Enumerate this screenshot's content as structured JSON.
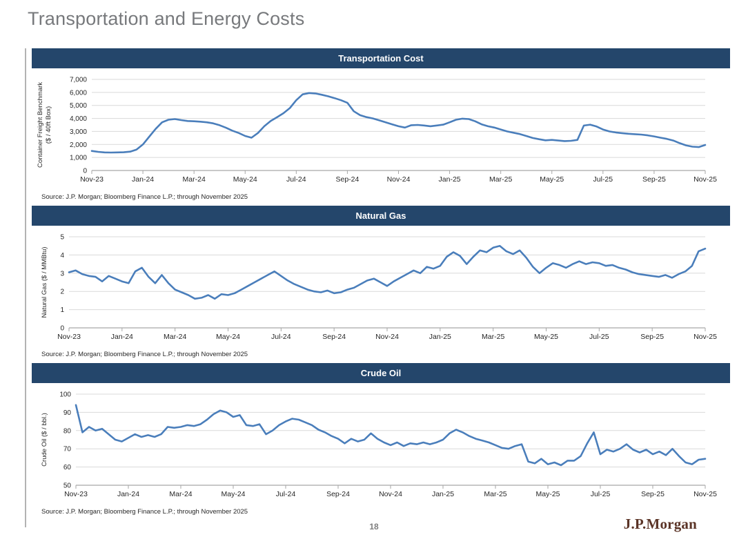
{
  "page": {
    "title": "Transportation and Energy Costs",
    "page_number": "18",
    "logo": "J.P.Morgan"
  },
  "source_note": "Source: J.P. Morgan; Bloomberg Finance L.P.; through November 2025",
  "colors": {
    "header_bg": "#24466B",
    "line": "#4A7EBB",
    "grid": "#D9D9D9",
    "axis": "#A6A6A6",
    "title_gray": "#77797C",
    "logo_brown": "#5B3427",
    "page_number_gray": "#7F7F7F"
  },
  "chart_data": [
    {
      "type": "line",
      "title": "Transportation Cost",
      "ylabel_lines": [
        "Container Freight Benchmark",
        "($ / 40ft Box)"
      ],
      "ymin": 0,
      "ymax": 7000,
      "ystep": 1000,
      "y_tick_labels": [
        "0",
        "1,000",
        "2,000",
        "3,000",
        "4,000",
        "5,000",
        "6,000",
        "7,000"
      ],
      "x_ticks": [
        "Nov-23",
        "Jan-24",
        "Mar-24",
        "May-24",
        "Jul-24",
        "Sep-24",
        "Nov-24",
        "Jan-25",
        "Mar-25",
        "May-25",
        "Jul-25",
        "Sep-25",
        "Nov-25"
      ],
      "x_note": "values evenly spaced (approx. weekly) Nov-2023 through Nov-2025",
      "values": [
        1500,
        1430,
        1390,
        1380,
        1390,
        1400,
        1450,
        1600,
        2000,
        2600,
        3200,
        3700,
        3900,
        3950,
        3870,
        3800,
        3780,
        3750,
        3700,
        3620,
        3480,
        3280,
        3060,
        2880,
        2650,
        2520,
        2880,
        3400,
        3800,
        4100,
        4400,
        4800,
        5400,
        5850,
        5950,
        5920,
        5820,
        5700,
        5560,
        5400,
        5200,
        4550,
        4250,
        4100,
        4000,
        3850,
        3700,
        3550,
        3400,
        3300,
        3480,
        3500,
        3460,
        3400,
        3460,
        3520,
        3700,
        3900,
        3980,
        3950,
        3780,
        3550,
        3400,
        3300,
        3150,
        3000,
        2900,
        2800,
        2650,
        2500,
        2400,
        2320,
        2350,
        2300,
        2260,
        2280,
        2350,
        3450,
        3520,
        3380,
        3150,
        3000,
        2920,
        2870,
        2820,
        2790,
        2760,
        2700,
        2620,
        2520,
        2430,
        2300,
        2100,
        1930,
        1830,
        1800,
        1960
      ]
    },
    {
      "type": "line",
      "title": "Natural Gas",
      "ylabel_lines": [
        "Natural Gas ($ / MMBtu)"
      ],
      "ymin": 0,
      "ymax": 5,
      "ystep": 1,
      "y_tick_labels": [
        "0",
        "1",
        "2",
        "3",
        "4",
        "5"
      ],
      "x_ticks": [
        "Nov-23",
        "Jan-24",
        "Mar-24",
        "May-24",
        "Jul-24",
        "Sep-24",
        "Nov-24",
        "Jan-25",
        "Mar-25",
        "May-25",
        "Jul-25",
        "Sep-25",
        "Nov-25"
      ],
      "x_note": "values evenly spaced (approx. weekly) Nov-2023 through Nov-2025",
      "values": [
        3.05,
        3.15,
        2.95,
        2.85,
        2.8,
        2.55,
        2.85,
        2.7,
        2.55,
        2.45,
        3.1,
        3.3,
        2.8,
        2.45,
        2.9,
        2.45,
        2.1,
        1.95,
        1.8,
        1.6,
        1.65,
        1.8,
        1.6,
        1.85,
        1.8,
        1.9,
        2.1,
        2.3,
        2.5,
        2.7,
        2.9,
        3.1,
        2.85,
        2.6,
        2.4,
        2.25,
        2.1,
        2.0,
        1.95,
        2.05,
        1.9,
        1.95,
        2.1,
        2.2,
        2.4,
        2.6,
        2.7,
        2.5,
        2.3,
        2.55,
        2.75,
        2.95,
        3.15,
        3.0,
        3.35,
        3.25,
        3.4,
        3.9,
        4.15,
        3.95,
        3.5,
        3.9,
        4.25,
        4.15,
        4.4,
        4.5,
        4.2,
        4.05,
        4.25,
        3.85,
        3.35,
        3.0,
        3.3,
        3.55,
        3.45,
        3.3,
        3.5,
        3.65,
        3.5,
        3.6,
        3.55,
        3.4,
        3.45,
        3.3,
        3.2,
        3.05,
        2.95,
        2.9,
        2.85,
        2.8,
        2.9,
        2.75,
        2.95,
        3.1,
        3.4,
        4.2,
        4.35
      ]
    },
    {
      "type": "line",
      "title": "Crude Oil",
      "ylabel_lines": [
        "Crude Oil ($ / bbl.)"
      ],
      "ymin": 50,
      "ymax": 100,
      "ystep": 10,
      "y_tick_labels": [
        "50",
        "60",
        "70",
        "80",
        "90",
        "100"
      ],
      "x_ticks": [
        "Nov-23",
        "Jan-24",
        "Mar-24",
        "May-24",
        "Jul-24",
        "Sep-24",
        "Nov-24",
        "Jan-25",
        "Mar-25",
        "May-25",
        "Jul-25",
        "Sep-25",
        "Nov-25"
      ],
      "x_note": "values evenly spaced (approx. weekly) Nov-2023 through Nov-2025",
      "values": [
        94,
        79,
        82,
        80,
        81,
        78,
        75,
        74,
        76,
        78,
        76.5,
        77.5,
        76.5,
        78,
        82,
        81.5,
        82,
        83,
        82.5,
        83.5,
        86,
        89,
        91,
        90,
        87.5,
        88.5,
        83,
        82.5,
        83.5,
        78,
        80,
        83,
        85,
        86.5,
        86,
        84.5,
        83,
        80.5,
        79,
        77,
        75.5,
        73,
        75.5,
        74,
        75,
        78.5,
        75.5,
        73.5,
        72,
        73.5,
        71.5,
        73,
        72.5,
        73.5,
        72.5,
        73.5,
        75,
        78.5,
        80.5,
        79,
        77,
        75.5,
        74.5,
        73.5,
        72,
        70.5,
        70,
        71.5,
        72.5,
        63,
        62,
        64.5,
        61.5,
        62.5,
        61,
        63.5,
        63.5,
        66,
        73,
        79,
        67,
        69.5,
        68.5,
        70,
        72.5,
        69.5,
        68,
        69.5,
        67,
        68.5,
        66.5,
        70,
        66,
        62.5,
        61.5,
        64,
        64.5
      ]
    }
  ]
}
